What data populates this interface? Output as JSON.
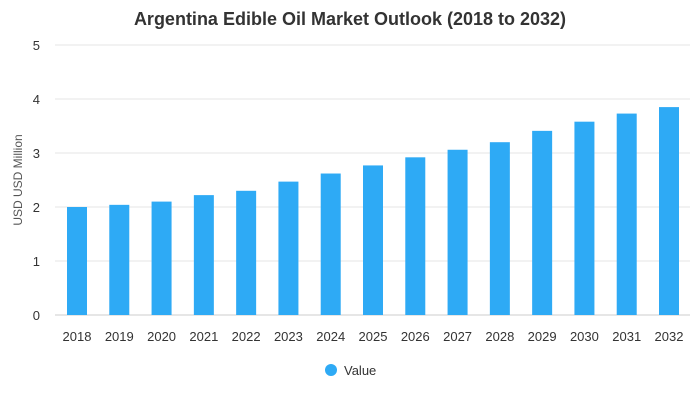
{
  "chart_data": {
    "type": "bar",
    "title": "Argentina Edible Oil Market Outlook (2018 to 2032)",
    "xlabel": "",
    "ylabel": "USD USD Million",
    "categories": [
      "2018",
      "2019",
      "2020",
      "2021",
      "2022",
      "2023",
      "2024",
      "2025",
      "2026",
      "2027",
      "2028",
      "2029",
      "2030",
      "2031",
      "2032"
    ],
    "series": [
      {
        "name": "Value",
        "color": "#2eaaf5",
        "values": [
          2.0,
          2.04,
          2.1,
          2.22,
          2.3,
          2.47,
          2.62,
          2.77,
          2.92,
          3.06,
          3.2,
          3.41,
          3.58,
          3.73,
          3.85
        ]
      }
    ],
    "ylim": [
      0,
      5
    ],
    "yticks": [
      0,
      1,
      2,
      3,
      4,
      5
    ],
    "grid": true,
    "legend_position": "bottom"
  }
}
